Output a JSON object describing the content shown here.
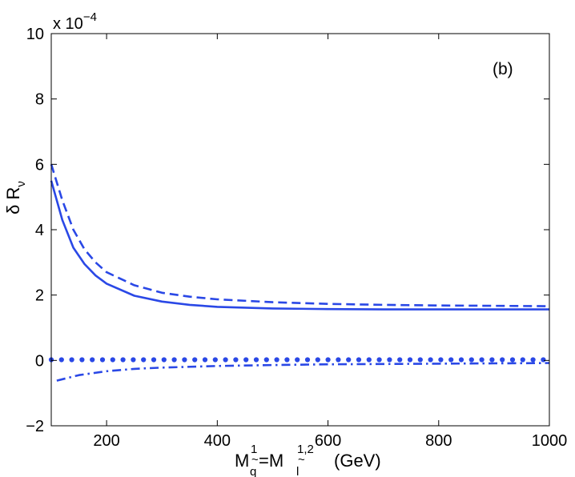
{
  "chart_data": {
    "type": "line",
    "panel_label": "(b)",
    "ylabel_main": "δ R",
    "ylabel_sub": "ν",
    "xlabel_parts": {
      "M1": "M",
      "q_tilde": "q",
      "tilde1": "~",
      "sup1": "1",
      "equals": "=M",
      "l_tilde": "l",
      "tilde2": "~",
      "sup12": "1,2",
      "unit": "(GeV)"
    },
    "y_multiplier": {
      "base": "x 10",
      "exponent": "−4"
    },
    "xlim": [
      100,
      1000
    ],
    "ylim": [
      -2,
      10
    ],
    "xticks": [
      200,
      400,
      600,
      800,
      1000
    ],
    "yticks": [
      -2,
      0,
      2,
      4,
      6,
      8,
      10
    ],
    "ytick_labels": [
      "−2",
      "0",
      "2",
      "4",
      "6",
      "8",
      "10"
    ],
    "grid": false,
    "series_color": "#2a48e6",
    "series": [
      {
        "name": "solid",
        "style": "solid",
        "x": [
          100,
          120,
          140,
          160,
          180,
          200,
          250,
          300,
          350,
          400,
          500,
          600,
          700,
          800,
          900,
          1000
        ],
        "y": [
          5.5,
          4.3,
          3.45,
          2.95,
          2.6,
          2.35,
          1.98,
          1.8,
          1.7,
          1.64,
          1.59,
          1.57,
          1.56,
          1.56,
          1.56,
          1.56
        ]
      },
      {
        "name": "dashed",
        "style": "dashed",
        "x": [
          100,
          120,
          140,
          160,
          180,
          200,
          250,
          300,
          350,
          400,
          500,
          600,
          700,
          800,
          900,
          1000
        ],
        "y": [
          6.0,
          4.9,
          4.0,
          3.4,
          3.0,
          2.7,
          2.3,
          2.07,
          1.95,
          1.87,
          1.78,
          1.73,
          1.7,
          1.68,
          1.67,
          1.66
        ]
      },
      {
        "name": "dotted",
        "style": "dotted",
        "x": [
          100,
          1000
        ],
        "y": [
          0.02,
          0.02
        ]
      },
      {
        "name": "dash-dot",
        "style": "dashdot",
        "x": [
          110,
          150,
          200,
          250,
          300,
          400,
          500,
          600,
          700,
          800,
          900,
          1000
        ],
        "y": [
          -0.62,
          -0.45,
          -0.33,
          -0.26,
          -0.22,
          -0.17,
          -0.14,
          -0.12,
          -0.11,
          -0.1,
          -0.09,
          -0.08
        ]
      }
    ]
  }
}
